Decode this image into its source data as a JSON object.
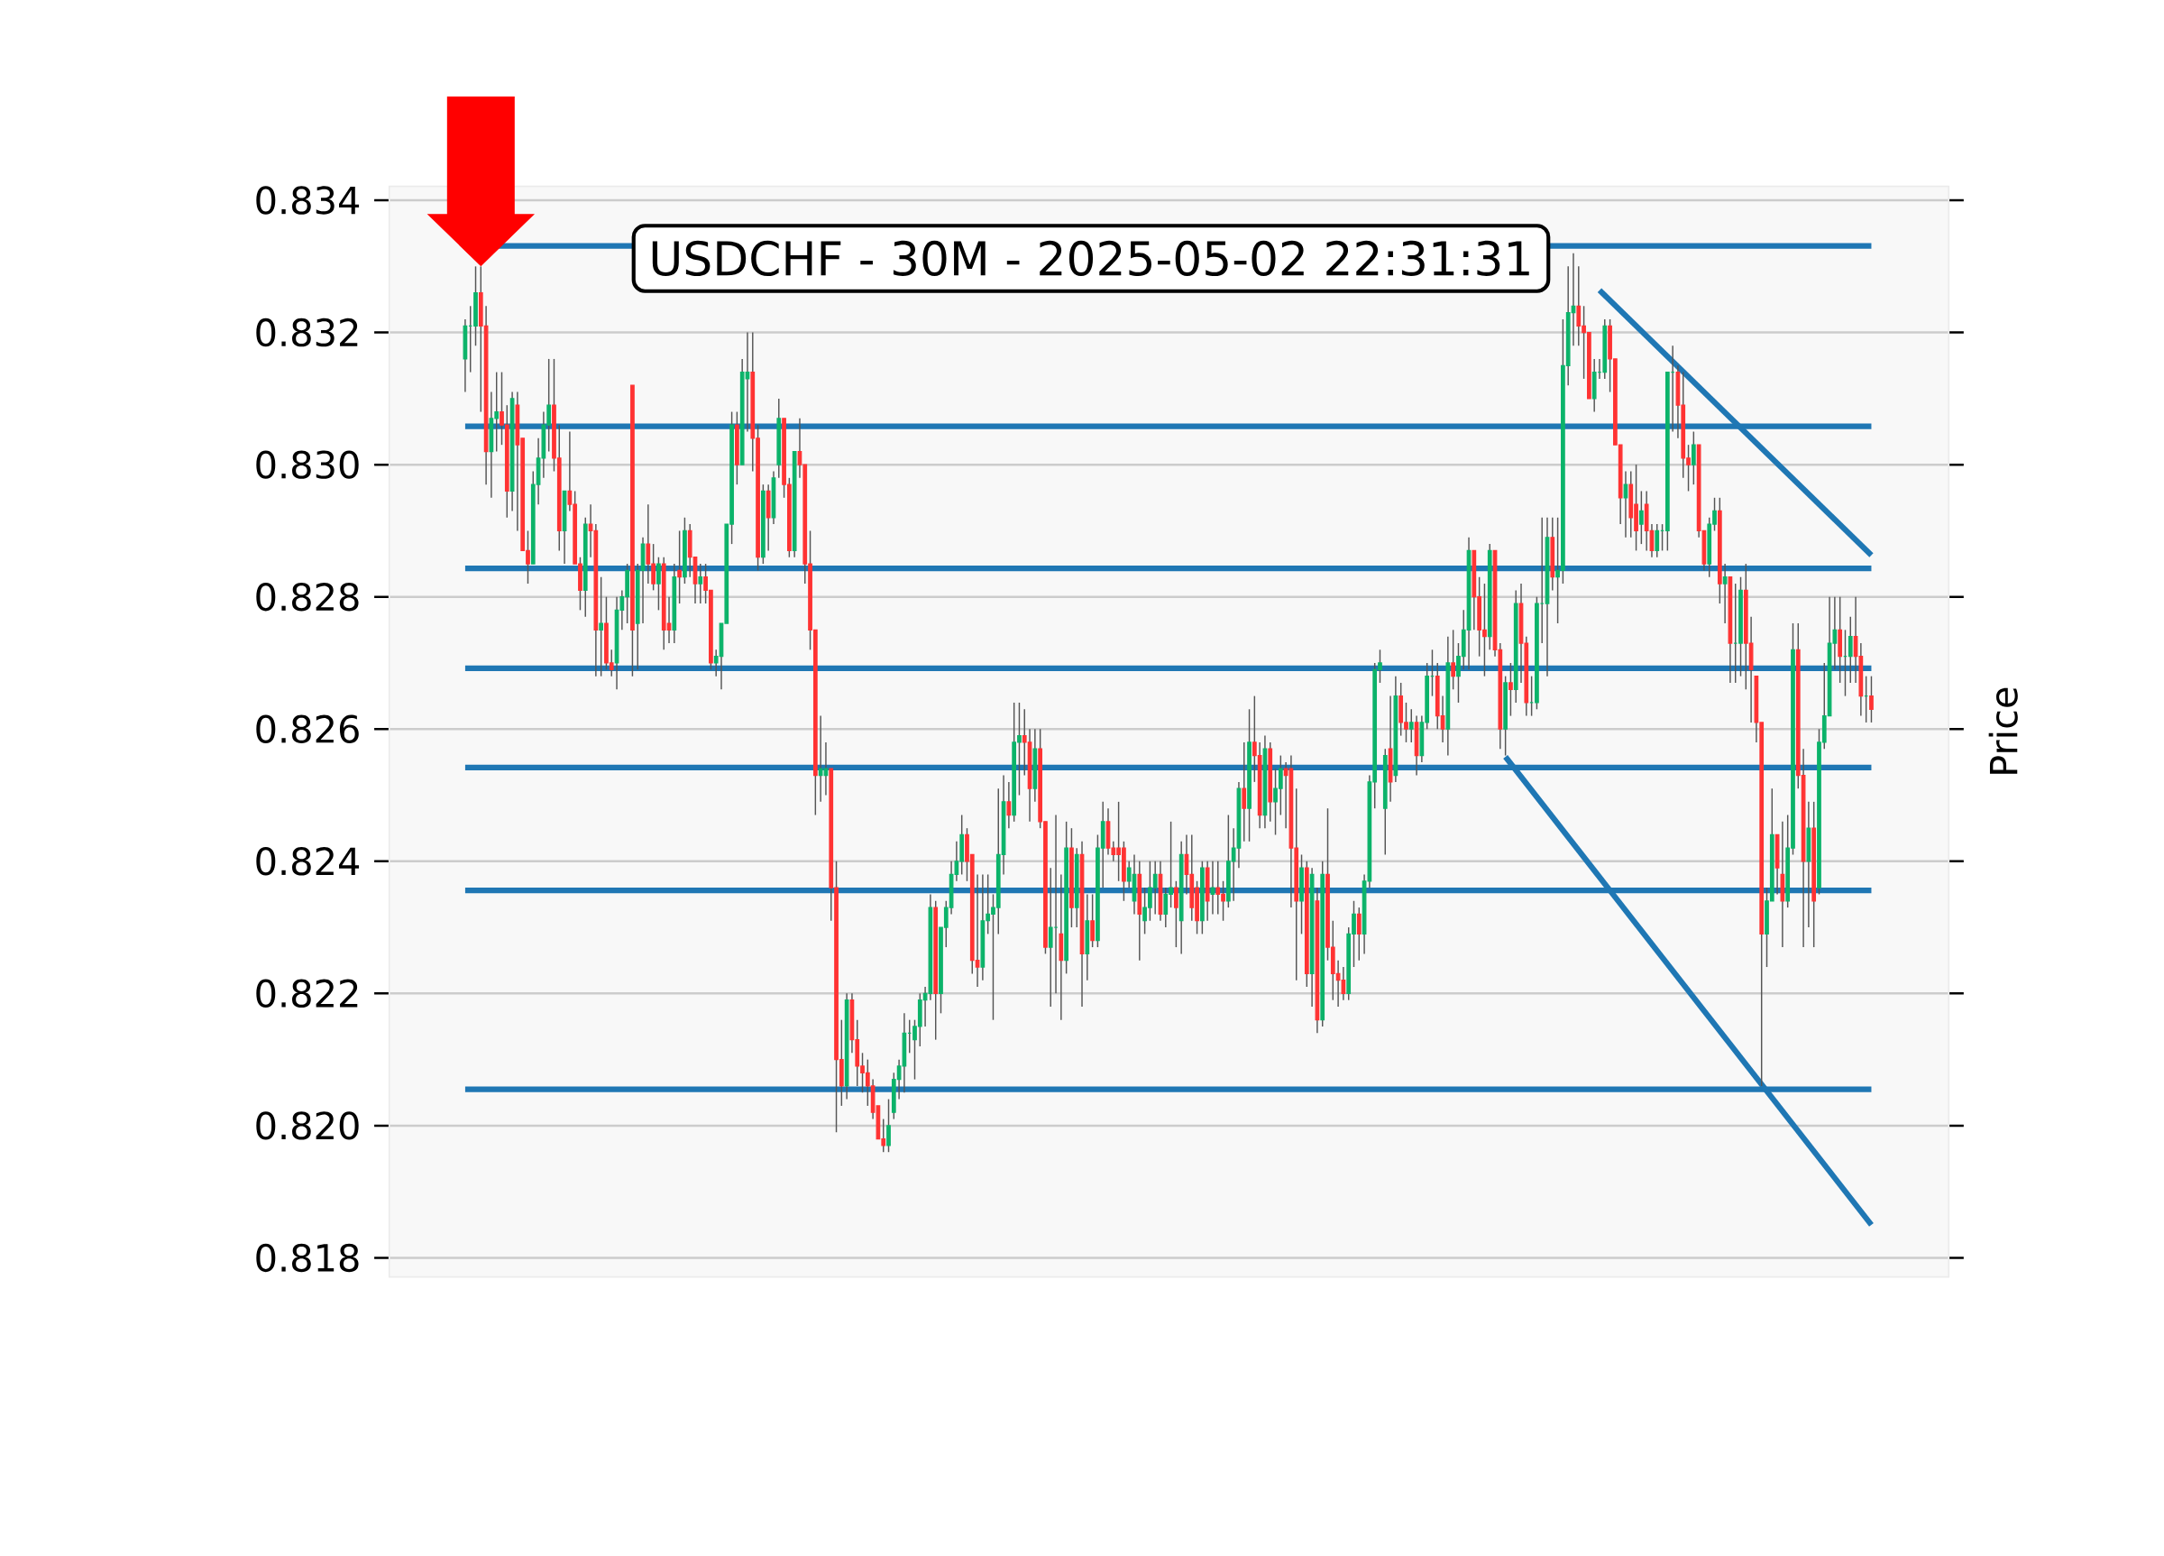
{
  "chart_data": {
    "type": "candlestick",
    "title": "USDCHF - 30M - 2025-05-02 22:31:31",
    "ylabel": "Price",
    "ylim": [
      0.81771,
      0.83421
    ],
    "yticks": [
      {
        "value": 0.818,
        "label": "0.818"
      },
      {
        "value": 0.82,
        "label": "0.820"
      },
      {
        "value": 0.822,
        "label": "0.822"
      },
      {
        "value": 0.824,
        "label": "0.824"
      },
      {
        "value": 0.826,
        "label": "0.826"
      },
      {
        "value": 0.828,
        "label": "0.828"
      },
      {
        "value": 0.83,
        "label": "0.830"
      },
      {
        "value": 0.832,
        "label": "0.832"
      },
      {
        "value": 0.834,
        "label": "0.834"
      }
    ],
    "grid": "y",
    "categories": [
      null,
      null,
      null,
      null,
      null,
      null,
      null,
      null,
      null,
      null,
      null,
      null,
      null,
      null,
      null,
      null,
      null,
      null,
      null,
      null,
      null,
      null,
      null,
      null,
      null,
      null,
      null,
      null,
      null,
      null,
      null,
      null,
      null,
      null,
      null,
      null,
      null,
      null,
      null,
      null,
      null,
      null,
      null,
      null,
      null,
      null,
      null,
      null,
      null,
      null,
      null,
      null,
      null,
      null,
      null,
      null,
      null,
      null,
      null,
      null,
      null,
      null,
      null,
      null,
      null,
      null,
      null,
      null,
      null,
      null,
      null,
      null,
      null,
      null,
      null,
      null,
      null,
      null,
      null,
      null,
      null,
      null,
      null,
      null,
      null,
      null,
      null,
      null,
      null,
      null,
      null,
      null,
      null,
      null,
      null,
      null,
      null,
      null,
      null,
      null,
      null,
      null,
      null,
      null,
      null,
      null,
      null,
      null,
      null,
      null,
      null,
      null,
      null,
      null,
      null,
      null,
      null,
      null,
      null,
      null,
      null,
      null,
      null,
      null,
      null,
      null,
      null,
      null,
      null,
      null,
      null,
      null,
      null,
      null,
      null,
      null,
      null,
      null,
      null,
      null,
      null,
      null,
      null,
      null,
      null,
      null,
      null,
      null,
      null,
      null,
      null,
      null,
      null,
      null,
      null,
      null,
      null,
      null,
      null,
      null,
      null,
      null,
      null,
      null,
      null,
      null,
      null,
      null,
      null,
      null,
      null,
      null,
      null,
      null,
      null,
      null,
      null,
      null,
      null,
      null,
      null,
      null,
      null,
      null,
      null,
      null,
      null,
      null,
      null,
      null,
      null,
      null,
      null,
      null,
      null,
      null,
      null,
      null,
      null,
      null,
      null,
      null,
      null,
      null,
      null,
      null,
      null,
      null,
      null,
      null,
      null,
      null,
      null,
      null,
      null,
      null,
      null,
      null,
      null,
      null,
      null,
      null,
      null,
      null,
      null,
      null,
      null,
      null,
      null,
      null,
      null,
      null,
      null,
      null,
      null,
      null,
      null,
      null,
      null,
      null,
      null,
      null,
      null,
      null,
      null,
      null,
      null,
      null,
      null,
      null,
      null,
      null,
      null,
      null,
      null,
      null,
      null,
      null,
      null,
      null,
      null,
      null,
      null,
      null,
      null,
      null,
      null,
      null,
      null,
      null
    ],
    "ohlc": [
      [
        0.8316,
        0.8322,
        0.8311,
        0.8321
      ],
      [
        0.8321,
        0.8324,
        0.8314,
        0.8321
      ],
      [
        0.8321,
        0.833,
        0.8318,
        0.8326
      ],
      [
        0.8326,
        0.833,
        0.8308,
        0.8321
      ],
      [
        0.8321,
        0.8324,
        0.8297,
        0.8302
      ],
      [
        0.8302,
        0.8311,
        0.8295,
        0.8307
      ],
      [
        0.8307,
        0.8314,
        0.8302,
        0.8308
      ],
      [
        0.8308,
        0.8314,
        0.8303,
        0.8306
      ],
      [
        0.8306,
        0.8309,
        0.8292,
        0.8296
      ],
      [
        0.8296,
        0.8311,
        0.8293,
        0.831
      ],
      [
        0.8309,
        0.8311,
        0.829,
        0.8303
      ],
      [
        0.8304,
        0.8304,
        0.8287,
        0.8287
      ],
      [
        0.8287,
        0.829,
        0.8282,
        0.8285
      ],
      [
        0.8285,
        0.8299,
        0.8285,
        0.8297
      ],
      [
        0.8297,
        0.8304,
        0.8294,
        0.8301
      ],
      [
        0.8301,
        0.8308,
        0.8298,
        0.8306
      ],
      [
        0.8306,
        0.8316,
        0.8302,
        0.8309
      ],
      [
        0.8309,
        0.8316,
        0.8299,
        0.8301
      ],
      [
        0.8301,
        0.8306,
        0.8287,
        0.829
      ],
      [
        0.829,
        0.8296,
        0.8285,
        0.8296
      ],
      [
        0.8296,
        0.8305,
        0.8293,
        0.8294
      ],
      [
        0.8294,
        0.8296,
        0.8285,
        0.8285
      ],
      [
        0.8285,
        0.8286,
        0.8278,
        0.8281
      ],
      [
        0.8281,
        0.8292,
        0.8277,
        0.8291
      ],
      [
        0.8291,
        0.8294,
        0.8286,
        0.829
      ],
      [
        0.829,
        0.8291,
        0.8268,
        0.8275
      ],
      [
        0.8275,
        0.8283,
        0.8268,
        0.8276
      ],
      [
        0.8276,
        0.828,
        0.8269,
        0.827
      ],
      [
        0.827,
        0.8272,
        0.8268,
        0.8269
      ],
      [
        0.827,
        0.828,
        0.8266,
        0.8278
      ],
      [
        0.8278,
        0.8281,
        0.8275,
        0.828
      ],
      [
        0.828,
        0.8285,
        0.8276,
        0.8284
      ],
      [
        0.8312,
        0.8312,
        0.8268,
        0.8275
      ],
      [
        0.8276,
        0.8285,
        0.8269,
        0.8284
      ],
      [
        0.8284,
        0.8289,
        0.8276,
        0.8288
      ],
      [
        0.8288,
        0.8294,
        0.8282,
        0.8285
      ],
      [
        0.8285,
        0.8288,
        0.8281,
        0.8282
      ],
      [
        0.8282,
        0.8286,
        0.8278,
        0.8285
      ],
      [
        0.8285,
        0.8286,
        0.8272,
        0.8275
      ],
      [
        0.8276,
        0.828,
        0.8273,
        0.8275
      ],
      [
        0.8275,
        0.8285,
        0.8273,
        0.8283
      ],
      [
        0.8284,
        0.829,
        0.8279,
        0.8283
      ],
      [
        0.8283,
        0.8292,
        0.8282,
        0.829
      ],
      [
        0.829,
        0.8291,
        0.8283,
        0.8286
      ],
      [
        0.8286,
        0.8286,
        0.8279,
        0.8282
      ],
      [
        0.8282,
        0.8285,
        0.8279,
        0.8283
      ],
      [
        0.8283,
        0.8285,
        0.8279,
        0.8281
      ],
      [
        0.8281,
        0.8281,
        0.8269,
        0.827
      ],
      [
        0.827,
        0.8272,
        0.8268,
        0.8271
      ],
      [
        0.8271,
        0.8276,
        0.8266,
        0.8276
      ],
      [
        0.8276,
        0.8291,
        0.8276,
        0.8291
      ],
      [
        0.8291,
        0.8308,
        0.8288,
        0.8306
      ],
      [
        0.8306,
        0.8308,
        0.8297,
        0.83
      ],
      [
        0.83,
        0.8316,
        0.83,
        0.8314
      ],
      [
        0.8313,
        0.832,
        0.8305,
        0.8314
      ],
      [
        0.8314,
        0.832,
        0.8299,
        0.8304
      ],
      [
        0.8304,
        0.8306,
        0.8284,
        0.8286
      ],
      [
        0.8286,
        0.8297,
        0.8285,
        0.8296
      ],
      [
        0.8296,
        0.8297,
        0.8287,
        0.8292
      ],
      [
        0.8292,
        0.8299,
        0.8291,
        0.8298
      ],
      [
        0.83,
        0.831,
        0.8298,
        0.8307
      ],
      [
        0.8307,
        0.8307,
        0.8295,
        0.8297
      ],
      [
        0.8297,
        0.8298,
        0.8286,
        0.8287
      ],
      [
        0.8287,
        0.8302,
        0.8286,
        0.8302
      ],
      [
        0.8302,
        0.8307,
        0.8298,
        0.83
      ],
      [
        0.83,
        0.83,
        0.8282,
        0.8285
      ],
      [
        0.8285,
        0.829,
        0.8272,
        0.8275
      ],
      [
        0.8275,
        0.8275,
        0.8247,
        0.8253
      ],
      [
        0.8253,
        0.8262,
        0.8249,
        0.8254
      ],
      [
        0.8253,
        0.8258,
        0.825,
        0.8254
      ],
      [
        0.8254,
        0.8254,
        0.8231,
        0.8236
      ],
      [
        0.8236,
        0.824,
        0.8199,
        0.821
      ],
      [
        0.821,
        0.8216,
        0.8203,
        0.8206
      ],
      [
        0.8206,
        0.822,
        0.8204,
        0.8219
      ],
      [
        0.8219,
        0.822,
        0.8211,
        0.8213
      ],
      [
        0.8213,
        0.8216,
        0.8206,
        0.8209
      ],
      [
        0.8209,
        0.8211,
        0.8205,
        0.8208
      ],
      [
        0.8208,
        0.821,
        0.8203,
        0.8206
      ],
      [
        0.8206,
        0.8207,
        0.8201,
        0.8202
      ],
      [
        0.8203,
        0.8203,
        0.8198,
        0.8198
      ],
      [
        0.8198,
        0.8201,
        0.8196,
        0.8197
      ],
      [
        0.8197,
        0.8204,
        0.8196,
        0.82
      ],
      [
        0.8202,
        0.8208,
        0.8201,
        0.8207
      ],
      [
        0.8207,
        0.821,
        0.8204,
        0.8209
      ],
      [
        0.8209,
        0.8217,
        0.8205,
        0.8214
      ],
      [
        0.8214,
        0.8216,
        0.8211,
        0.8214
      ],
      [
        0.8213,
        0.8216,
        0.8207,
        0.8215
      ],
      [
        0.8215,
        0.822,
        0.8212,
        0.8219
      ],
      [
        0.8219,
        0.8221,
        0.8215,
        0.822
      ],
      [
        0.822,
        0.8235,
        0.8219,
        0.8233
      ],
      [
        0.8233,
        0.8234,
        0.8213,
        0.822
      ],
      [
        0.822,
        0.823,
        0.8217,
        0.823
      ],
      [
        0.823,
        0.8234,
        0.8227,
        0.8233
      ],
      [
        0.8233,
        0.824,
        0.8232,
        0.8238
      ],
      [
        0.8238,
        0.8243,
        0.8237,
        0.824
      ],
      [
        0.824,
        0.8247,
        0.8238,
        0.8244
      ],
      [
        0.8244,
        0.8245,
        0.8237,
        0.824
      ],
      [
        0.8241,
        0.8241,
        0.8223,
        0.8225
      ],
      [
        0.8225,
        0.8238,
        0.8221,
        0.8224
      ],
      [
        0.8224,
        0.8238,
        0.8222,
        0.8231
      ],
      [
        0.8231,
        0.8238,
        0.8229,
        0.8232
      ],
      [
        0.8232,
        0.8235,
        0.8216,
        0.8233
      ],
      [
        0.8233,
        0.8251,
        0.8229,
        0.8241
      ],
      [
        0.8241,
        0.8253,
        0.8238,
        0.8249
      ],
      [
        0.8249,
        0.8252,
        0.8245,
        0.8247
      ],
      [
        0.8247,
        0.8264,
        0.8246,
        0.8258
      ],
      [
        0.8258,
        0.8264,
        0.825,
        0.8259
      ],
      [
        0.8259,
        0.8263,
        0.8253,
        0.8258
      ],
      [
        0.8258,
        0.826,
        0.8246,
        0.8251
      ],
      [
        0.8251,
        0.826,
        0.8249,
        0.8257
      ],
      [
        0.8257,
        0.826,
        0.8245,
        0.8246
      ],
      [
        0.8246,
        0.8246,
        0.8226,
        0.8227
      ],
      [
        0.8227,
        0.8239,
        0.8218,
        0.823
      ],
      [
        0.823,
        0.8247,
        0.822,
        0.823
      ],
      [
        0.8229,
        0.8238,
        0.8216,
        0.8225
      ],
      [
        0.8225,
        0.8246,
        0.8223,
        0.8242
      ],
      [
        0.8242,
        0.8245,
        0.823,
        0.8233
      ],
      [
        0.8233,
        0.8242,
        0.823,
        0.8241
      ],
      [
        0.8241,
        0.8243,
        0.8218,
        0.8226
      ],
      [
        0.8226,
        0.8235,
        0.8222,
        0.8231
      ],
      [
        0.8231,
        0.8235,
        0.8227,
        0.8228
      ],
      [
        0.8228,
        0.8244,
        0.8227,
        0.8242
      ],
      [
        0.8242,
        0.8249,
        0.8236,
        0.8246
      ],
      [
        0.8246,
        0.8248,
        0.8241,
        0.8242
      ],
      [
        0.8242,
        0.8243,
        0.824,
        0.8241
      ],
      [
        0.8242,
        0.8249,
        0.8237,
        0.8241
      ],
      [
        0.8242,
        0.8243,
        0.8234,
        0.8237
      ],
      [
        0.8237,
        0.824,
        0.8236,
        0.8239
      ],
      [
        0.8234,
        0.8241,
        0.8232,
        0.8238
      ],
      [
        0.8238,
        0.824,
        0.8225,
        0.8232
      ],
      [
        0.8231,
        0.8236,
        0.8229,
        0.8233
      ],
      [
        0.8233,
        0.824,
        0.8231,
        0.8236
      ],
      [
        0.8236,
        0.824,
        0.8232,
        0.8238
      ],
      [
        0.8238,
        0.824,
        0.8231,
        0.8232
      ],
      [
        0.8232,
        0.8236,
        0.823,
        0.8235
      ],
      [
        0.8235,
        0.8246,
        0.8233,
        0.8236
      ],
      [
        0.8236,
        0.8237,
        0.8227,
        0.8233
      ],
      [
        0.8231,
        0.8243,
        0.8226,
        0.8241
      ],
      [
        0.8241,
        0.8244,
        0.8235,
        0.8238
      ],
      [
        0.8238,
        0.8244,
        0.8231,
        0.8233
      ],
      [
        0.8236,
        0.8237,
        0.8229,
        0.8231
      ],
      [
        0.8231,
        0.824,
        0.8229,
        0.8239
      ],
      [
        0.8239,
        0.824,
        0.8231,
        0.8234
      ],
      [
        0.8235,
        0.824,
        0.8232,
        0.8236
      ],
      [
        0.8236,
        0.824,
        0.8232,
        0.8235
      ],
      [
        0.8235,
        0.8237,
        0.8231,
        0.8234
      ],
      [
        0.8234,
        0.8247,
        0.8233,
        0.824
      ],
      [
        0.824,
        0.8245,
        0.8234,
        0.8242
      ],
      [
        0.8242,
        0.8252,
        0.8239,
        0.8251
      ],
      [
        0.8251,
        0.8258,
        0.8243,
        0.8248
      ],
      [
        0.8248,
        0.8263,
        0.8243,
        0.8258
      ],
      [
        0.8258,
        0.8265,
        0.8252,
        0.8256
      ],
      [
        0.8256,
        0.8258,
        0.8245,
        0.8247
      ],
      [
        0.8247,
        0.8259,
        0.8245,
        0.8257
      ],
      [
        0.8257,
        0.8258,
        0.8246,
        0.8249
      ],
      [
        0.8249,
        0.8254,
        0.8244,
        0.8251
      ],
      [
        0.8251,
        0.8256,
        0.8247,
        0.8254
      ],
      [
        0.8254,
        0.8255,
        0.8245,
        0.8253
      ],
      [
        0.8254,
        0.8256,
        0.8233,
        0.8242
      ],
      [
        0.8242,
        0.8251,
        0.8222,
        0.8234
      ],
      [
        0.8234,
        0.8241,
        0.8229,
        0.8239
      ],
      [
        0.8239,
        0.824,
        0.8221,
        0.8223
      ],
      [
        0.8223,
        0.8239,
        0.8218,
        0.8238
      ],
      [
        0.8234,
        0.8236,
        0.8214,
        0.8216
      ],
      [
        0.8216,
        0.824,
        0.8215,
        0.8238
      ],
      [
        0.8238,
        0.8248,
        0.8225,
        0.8227
      ],
      [
        0.8227,
        0.8231,
        0.8219,
        0.8223
      ],
      [
        0.8223,
        0.8225,
        0.8218,
        0.8222
      ],
      [
        0.8222,
        0.8224,
        0.8219,
        0.822
      ],
      [
        0.822,
        0.823,
        0.8219,
        0.8229
      ],
      [
        0.8229,
        0.8234,
        0.8224,
        0.8232
      ],
      [
        0.8232,
        0.8233,
        0.8225,
        0.8229
      ],
      [
        0.8229,
        0.8238,
        0.8226,
        0.8237
      ],
      [
        0.8237,
        0.8253,
        0.8236,
        0.8252
      ],
      [
        0.8252,
        0.827,
        0.8248,
        0.8269
      ],
      [
        0.8269,
        0.8272,
        0.8267,
        0.827
      ],
      [
        0.8248,
        0.8257,
        0.8241,
        0.8256
      ],
      [
        0.8257,
        0.8265,
        0.8249,
        0.8252
      ],
      [
        0.8253,
        0.8268,
        0.8252,
        0.8265
      ],
      [
        0.8265,
        0.8267,
        0.8259,
        0.8261
      ],
      [
        0.8261,
        0.8264,
        0.8258,
        0.826
      ],
      [
        0.826,
        0.8263,
        0.8258,
        0.8261
      ],
      [
        0.8261,
        0.8262,
        0.8253,
        0.8256
      ],
      [
        0.8256,
        0.8262,
        0.8255,
        0.8261
      ],
      [
        0.8261,
        0.827,
        0.826,
        0.8268
      ],
      [
        0.8268,
        0.8272,
        0.8265,
        0.8268
      ],
      [
        0.8268,
        0.827,
        0.826,
        0.8262
      ],
      [
        0.8262,
        0.8265,
        0.8258,
        0.826
      ],
      [
        0.826,
        0.8274,
        0.8256,
        0.827
      ],
      [
        0.827,
        0.8275,
        0.8266,
        0.8268
      ],
      [
        0.8268,
        0.8273,
        0.8264,
        0.8271
      ],
      [
        0.8271,
        0.8278,
        0.8269,
        0.8275
      ],
      [
        0.8275,
        0.8289,
        0.8269,
        0.8287
      ],
      [
        0.8287,
        0.8287,
        0.8275,
        0.828
      ],
      [
        0.828,
        0.8283,
        0.8271,
        0.8275
      ],
      [
        0.8275,
        0.8282,
        0.8268,
        0.8274
      ],
      [
        0.8274,
        0.8288,
        0.8272,
        0.8287
      ],
      [
        0.8287,
        0.8287,
        0.8271,
        0.8272
      ],
      [
        0.8272,
        0.8273,
        0.8257,
        0.826
      ],
      [
        0.826,
        0.8268,
        0.8256,
        0.8267
      ],
      [
        0.8267,
        0.827,
        0.8262,
        0.8266
      ],
      [
        0.8266,
        0.8281,
        0.8264,
        0.8279
      ],
      [
        0.8279,
        0.8282,
        0.8267,
        0.8273
      ],
      [
        0.8273,
        0.8274,
        0.8262,
        0.8264
      ],
      [
        0.8264,
        0.8268,
        0.8262,
        0.8264
      ],
      [
        0.8264,
        0.828,
        0.8263,
        0.8279
      ],
      [
        0.8279,
        0.8292,
        0.8273,
        0.8279
      ],
      [
        0.8279,
        0.8292,
        0.8268,
        0.8289
      ],
      [
        0.8289,
        0.8292,
        0.8281,
        0.8283
      ],
      [
        0.8283,
        0.8292,
        0.8276,
        0.8284
      ],
      [
        0.8284,
        0.8322,
        0.8282,
        0.8315
      ],
      [
        0.8315,
        0.833,
        0.8312,
        0.8323
      ],
      [
        0.8323,
        0.8332,
        0.8318,
        0.8324
      ],
      [
        0.8324,
        0.833,
        0.8318,
        0.8321
      ],
      [
        0.8321,
        0.8324,
        0.8313,
        0.832
      ],
      [
        0.832,
        0.832,
        0.831,
        0.831
      ],
      [
        0.831,
        0.8316,
        0.8308,
        0.8314
      ],
      [
        0.8314,
        0.8316,
        0.8313,
        0.8314
      ],
      [
        0.8314,
        0.8322,
        0.8313,
        0.8321
      ],
      [
        0.8321,
        0.8322,
        0.8311,
        0.8316
      ],
      [
        0.8316,
        0.8316,
        0.8303,
        0.8303
      ],
      [
        0.8303,
        0.8303,
        0.8291,
        0.8295
      ],
      [
        0.8295,
        0.8299,
        0.8289,
        0.8297
      ],
      [
        0.8297,
        0.8299,
        0.8289,
        0.8292
      ],
      [
        0.8294,
        0.83,
        0.8287,
        0.829
      ],
      [
        0.8291,
        0.8296,
        0.8288,
        0.8293
      ],
      [
        0.8294,
        0.8296,
        0.8287,
        0.829
      ],
      [
        0.829,
        0.8291,
        0.8286,
        0.8287
      ],
      [
        0.8287,
        0.8291,
        0.8286,
        0.829
      ],
      [
        0.829,
        0.8291,
        0.8287,
        0.829
      ],
      [
        0.829,
        0.8314,
        0.8287,
        0.8314
      ],
      [
        0.8314,
        0.8318,
        0.8305,
        0.8314
      ],
      [
        0.8314,
        0.8315,
        0.8304,
        0.8309
      ],
      [
        0.8309,
        0.8314,
        0.8298,
        0.8301
      ],
      [
        0.8301,
        0.8303,
        0.8296,
        0.83
      ],
      [
        0.83,
        0.8305,
        0.8297,
        0.8303
      ],
      [
        0.8303,
        0.8303,
        0.8289,
        0.829
      ],
      [
        0.829,
        0.829,
        0.8284,
        0.8285
      ],
      [
        0.8285,
        0.8292,
        0.8283,
        0.8291
      ],
      [
        0.8291,
        0.8295,
        0.829,
        0.8293
      ],
      [
        0.8293,
        0.8295,
        0.8279,
        0.8282
      ],
      [
        0.8282,
        0.8285,
        0.8276,
        0.8283
      ],
      [
        0.8283,
        0.8283,
        0.8267,
        0.8273
      ],
      [
        0.8273,
        0.8282,
        0.8267,
        0.8273
      ],
      [
        0.8273,
        0.8283,
        0.8268,
        0.8281
      ],
      [
        0.8281,
        0.8285,
        0.8266,
        0.8273
      ],
      [
        0.8273,
        0.8277,
        0.8261,
        0.8269
      ],
      [
        0.8268,
        0.8268,
        0.8258,
        0.8261
      ],
      [
        0.8261,
        0.8261,
        0.8206,
        0.8229
      ],
      [
        0.8229,
        0.8236,
        0.8224,
        0.8234
      ],
      [
        0.8234,
        0.8251,
        0.8234,
        0.8244
      ],
      [
        0.8244,
        0.8244,
        0.8235,
        0.8239
      ],
      [
        0.8238,
        0.8246,
        0.8227,
        0.8234
      ],
      [
        0.8234,
        0.8247,
        0.8233,
        0.8242
      ],
      [
        0.8242,
        0.8276,
        0.8241,
        0.8272
      ],
      [
        0.8272,
        0.8276,
        0.8251,
        0.8253
      ],
      [
        0.8253,
        0.8257,
        0.8227,
        0.824
      ],
      [
        0.824,
        0.8249,
        0.823,
        0.8245
      ],
      [
        0.8245,
        0.8249,
        0.8227,
        0.8234
      ],
      [
        0.8236,
        0.826,
        0.8235,
        0.8258
      ],
      [
        0.8258,
        0.827,
        0.8257,
        0.8262
      ],
      [
        0.8262,
        0.828,
        0.8262,
        0.8273
      ],
      [
        0.8273,
        0.828,
        0.8269,
        0.8275
      ],
      [
        0.8275,
        0.828,
        0.8267,
        0.8271
      ],
      [
        0.8271,
        0.8275,
        0.8265,
        0.8271
      ],
      [
        0.8271,
        0.8277,
        0.8267,
        0.8274
      ],
      [
        0.8274,
        0.828,
        0.8267,
        0.8271
      ],
      [
        0.8271,
        0.8273,
        0.8262,
        0.8265
      ],
      [
        0.8265,
        0.8268,
        0.8261,
        0.8265
      ],
      [
        0.8265,
        0.8268,
        0.8261,
        0.8263
      ]
    ],
    "series": [
      {
        "type": "line",
        "color": "#1f77b4",
        "values": [
          null,
          null,
          null,
          null,
          null,
          null,
          null,
          null,
          null,
          null,
          null,
          null,
          null,
          null,
          null,
          null,
          null,
          null,
          null,
          null,
          null,
          null,
          null,
          null,
          null,
          null,
          null,
          null,
          null,
          null,
          null,
          null,
          null,
          null,
          null,
          null,
          null,
          null,
          null,
          null,
          null,
          null,
          null,
          null,
          null,
          null,
          null,
          null,
          null,
          null,
          null,
          null,
          null,
          null,
          null,
          null,
          null,
          null,
          null,
          null,
          null,
          null,
          null,
          null,
          null,
          null,
          null,
          null,
          null,
          null,
          null,
          null,
          null,
          null,
          null,
          null,
          null,
          null,
          null,
          null,
          null,
          null,
          null,
          null,
          null,
          null,
          null,
          null,
          null,
          null,
          null,
          null,
          null,
          null,
          null,
          null,
          null,
          null,
          null,
          null,
          null,
          null,
          null,
          null,
          null,
          null,
          null,
          null,
          null,
          null,
          null,
          null,
          null,
          null,
          null,
          null,
          null,
          null,
          null,
          null,
          null,
          null,
          null,
          null,
          null,
          null,
          null,
          null,
          null,
          null,
          null,
          null,
          null,
          null,
          null,
          null,
          null,
          null,
          null,
          null,
          null,
          null,
          null,
          null,
          null,
          null,
          null,
          null,
          null,
          null,
          null,
          null,
          null,
          null,
          null,
          null,
          null,
          null,
          null,
          null,
          null,
          null,
          null,
          null,
          null,
          null,
          null,
          null,
          null,
          null,
          null,
          null,
          null,
          null,
          null,
          null,
          null,
          null,
          null,
          null,
          null,
          null,
          null,
          null,
          null,
          null,
          null,
          null,
          null,
          null,
          null,
          null,
          null,
          null,
          null,
          null,
          null,
          null,
          null,
          null,
          null,
          null,
          null,
          null,
          null,
          null,
          null,
          null,
          null,
          null,
          null,
          null,
          null,
          null,
          null,
          null,
          null,
          0.83264,
          null,
          null,
          null,
          null,
          null,
          null,
          null,
          null,
          null,
          null,
          null,
          null,
          null,
          null,
          null,
          null,
          null,
          null,
          null,
          null,
          null,
          null,
          null,
          null,
          null,
          null,
          null,
          null,
          null,
          null,
          null,
          null,
          null,
          null,
          null,
          null,
          null,
          null,
          null,
          null,
          null,
          null,
          null,
          null,
          null,
          null,
          null,
          null,
          null,
          null,
          null,
          0.82863
        ]
      },
      {
        "type": "line",
        "color": "#1f77b4",
        "values": [
          null,
          null,
          null,
          null,
          null,
          null,
          null,
          null,
          null,
          null,
          null,
          null,
          null,
          null,
          null,
          null,
          null,
          null,
          null,
          null,
          null,
          null,
          null,
          null,
          null,
          null,
          null,
          null,
          null,
          null,
          null,
          null,
          null,
          null,
          null,
          null,
          null,
          null,
          null,
          null,
          null,
          null,
          null,
          null,
          null,
          null,
          null,
          null,
          null,
          null,
          null,
          null,
          null,
          null,
          null,
          null,
          null,
          null,
          null,
          null,
          null,
          null,
          null,
          null,
          null,
          null,
          null,
          null,
          null,
          null,
          null,
          null,
          null,
          null,
          null,
          null,
          null,
          null,
          null,
          null,
          null,
          null,
          null,
          null,
          null,
          null,
          null,
          null,
          null,
          null,
          null,
          null,
          null,
          null,
          null,
          null,
          null,
          null,
          null,
          null,
          null,
          null,
          null,
          null,
          null,
          null,
          null,
          null,
          null,
          null,
          null,
          null,
          null,
          null,
          null,
          null,
          null,
          null,
          null,
          null,
          null,
          null,
          null,
          null,
          null,
          null,
          null,
          null,
          null,
          null,
          null,
          null,
          null,
          null,
          null,
          null,
          null,
          null,
          null,
          null,
          null,
          null,
          null,
          null,
          null,
          null,
          null,
          null,
          null,
          null,
          null,
          null,
          null,
          null,
          null,
          null,
          null,
          null,
          null,
          null,
          null,
          null,
          null,
          null,
          null,
          null,
          null,
          null,
          null,
          null,
          null,
          null,
          null,
          null,
          null,
          null,
          null,
          null,
          null,
          null,
          null,
          null,
          null,
          null,
          null,
          null,
          null,
          null,
          null,
          null,
          null,
          null,
          null,
          null,
          null,
          null,
          null,
          null,
          null,
          0.82558,
          null,
          null,
          null,
          null,
          null,
          null,
          null,
          null,
          null,
          null,
          null,
          null,
          null,
          null,
          null,
          null,
          null,
          null,
          null,
          null,
          null,
          null,
          null,
          null,
          null,
          null,
          null,
          null,
          null,
          null,
          null,
          null,
          null,
          null,
          null,
          null,
          null,
          null,
          null,
          null,
          null,
          null,
          null,
          null,
          null,
          null,
          null,
          null,
          null,
          null,
          null,
          null,
          null,
          null,
          null,
          null,
          null,
          null,
          null,
          null,
          null,
          null,
          null,
          null,
          null,
          null,
          null,
          null,
          null,
          0.8185
        ]
      }
    ],
    "ref_lines": [
      {
        "axis": "y",
        "value": 0.83331,
        "color": "#1f77b4"
      },
      {
        "axis": "y",
        "value": 0.83058,
        "color": "#1f77b4"
      },
      {
        "axis": "y",
        "value": 0.82843,
        "color": "#1f77b4"
      },
      {
        "axis": "y",
        "value": 0.82692,
        "color": "#1f77b4"
      },
      {
        "axis": "y",
        "value": 0.82542,
        "color": "#1f77b4"
      },
      {
        "axis": "y",
        "value": 0.82356,
        "color": "#1f77b4"
      },
      {
        "axis": "y",
        "value": 0.82055,
        "color": "#1f77b4"
      }
    ]
  }
}
